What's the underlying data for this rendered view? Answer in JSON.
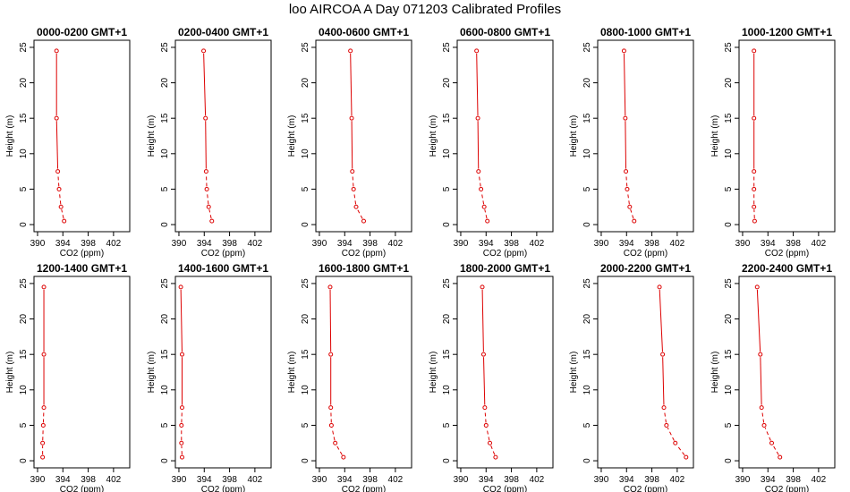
{
  "page": {
    "title": "loo AIRCOA A  Day 071203  Calibrated Profiles"
  },
  "colors": {
    "profile_line": "#dd0000",
    "axis": "#000000"
  },
  "chart_data": [
    {
      "type": "line",
      "title": "0000-0200 GMT+1",
      "xlabel": "CO2 (ppm)",
      "ylabel": "Height (m)",
      "xlim": [
        390,
        404
      ],
      "ylim": [
        0,
        25
      ],
      "xticks": [
        390,
        394,
        398,
        402
      ],
      "yticks": [
        0,
        5,
        10,
        15,
        20,
        25
      ],
      "grid": false,
      "x": [
        394.2,
        393.7,
        393.4,
        393.2,
        393.0,
        393.0
      ],
      "y": [
        0.5,
        2.5,
        5,
        7.5,
        15,
        24.5
      ]
    },
    {
      "type": "line",
      "title": "0200-0400 GMT+1",
      "xlabel": "CO2 (ppm)",
      "ylabel": "Height (m)",
      "xlim": [
        390,
        404
      ],
      "ylim": [
        0,
        25
      ],
      "xticks": [
        390,
        394,
        398,
        402
      ],
      "yticks": [
        0,
        5,
        10,
        15,
        20,
        25
      ],
      "grid": false,
      "x": [
        395.2,
        394.7,
        394.4,
        394.3,
        394.2,
        393.9
      ],
      "y": [
        0.5,
        2.5,
        5,
        7.5,
        15,
        24.5
      ]
    },
    {
      "type": "line",
      "title": "0400-0600 GMT+1",
      "xlabel": "CO2 (ppm)",
      "ylabel": "Height (m)",
      "xlim": [
        390,
        404
      ],
      "ylim": [
        0,
        25
      ],
      "xticks": [
        390,
        394,
        398,
        402
      ],
      "yticks": [
        0,
        5,
        10,
        15,
        20,
        25
      ],
      "grid": false,
      "x": [
        397.0,
        395.8,
        395.4,
        395.2,
        395.1,
        394.9
      ],
      "y": [
        0.5,
        2.5,
        5,
        7.5,
        15,
        24.5
      ]
    },
    {
      "type": "line",
      "title": "0600-0800 GMT+1",
      "xlabel": "CO2 (ppm)",
      "ylabel": "Height (m)",
      "xlim": [
        390,
        404
      ],
      "ylim": [
        0,
        25
      ],
      "xticks": [
        390,
        394,
        398,
        402
      ],
      "yticks": [
        0,
        5,
        10,
        15,
        20,
        25
      ],
      "grid": false,
      "x": [
        394.2,
        393.7,
        393.2,
        392.8,
        392.7,
        392.5
      ],
      "y": [
        0.5,
        2.5,
        5,
        7.5,
        15,
        24.5
      ]
    },
    {
      "type": "line",
      "title": "0800-1000 GMT+1",
      "xlabel": "CO2 (ppm)",
      "ylabel": "Height (m)",
      "xlim": [
        390,
        404
      ],
      "ylim": [
        0,
        25
      ],
      "xticks": [
        390,
        394,
        398,
        402
      ],
      "yticks": [
        0,
        5,
        10,
        15,
        20,
        25
      ],
      "grid": false,
      "x": [
        395.2,
        394.5,
        394.1,
        393.9,
        393.8,
        393.6
      ],
      "y": [
        0.5,
        2.5,
        5,
        7.5,
        15,
        24.5
      ]
    },
    {
      "type": "line",
      "title": "1000-1200 GMT+1",
      "xlabel": "CO2 (ppm)",
      "ylabel": "Height (m)",
      "xlim": [
        390,
        404
      ],
      "ylim": [
        0,
        25
      ],
      "xticks": [
        390,
        394,
        398,
        402
      ],
      "yticks": [
        0,
        5,
        10,
        15,
        20,
        25
      ],
      "grid": false,
      "x": [
        391.9,
        391.8,
        391.8,
        391.8,
        391.8,
        391.8
      ],
      "y": [
        0.5,
        2.5,
        5,
        7.5,
        15,
        24.5
      ]
    },
    {
      "type": "line",
      "title": "1200-1400 GMT+1",
      "xlabel": "CO2 (ppm)",
      "ylabel": "Height (m)",
      "xlim": [
        390,
        404
      ],
      "ylim": [
        0,
        25
      ],
      "xticks": [
        390,
        394,
        398,
        402
      ],
      "yticks": [
        0,
        5,
        10,
        15,
        20,
        25
      ],
      "grid": false,
      "x": [
        390.8,
        390.8,
        390.9,
        391.0,
        391.0,
        391.0
      ],
      "y": [
        0.5,
        2.5,
        5,
        7.5,
        15,
        24.5
      ]
    },
    {
      "type": "line",
      "title": "1400-1600 GMT+1",
      "xlabel": "CO2 (ppm)",
      "ylabel": "Height (m)",
      "xlim": [
        390,
        404
      ],
      "ylim": [
        0,
        25
      ],
      "xticks": [
        390,
        394,
        398,
        402
      ],
      "yticks": [
        0,
        5,
        10,
        15,
        20,
        25
      ],
      "grid": false,
      "x": [
        390.5,
        390.4,
        390.4,
        390.5,
        390.5,
        390.3
      ],
      "y": [
        0.5,
        2.5,
        5,
        7.5,
        15,
        24.5
      ]
    },
    {
      "type": "line",
      "title": "1600-1800 GMT+1",
      "xlabel": "CO2 (ppm)",
      "ylabel": "Height (m)",
      "xlim": [
        390,
        404
      ],
      "ylim": [
        0,
        25
      ],
      "xticks": [
        390,
        394,
        398,
        402
      ],
      "yticks": [
        0,
        5,
        10,
        15,
        20,
        25
      ],
      "grid": false,
      "x": [
        393.8,
        392.5,
        391.9,
        391.8,
        391.8,
        391.7
      ],
      "y": [
        0.5,
        2.5,
        5,
        7.5,
        15,
        24.5
      ]
    },
    {
      "type": "line",
      "title": "1800-2000 GMT+1",
      "xlabel": "CO2 (ppm)",
      "ylabel": "Height (m)",
      "xlim": [
        390,
        404
      ],
      "ylim": [
        0,
        25
      ],
      "xticks": [
        390,
        394,
        398,
        402
      ],
      "yticks": [
        0,
        5,
        10,
        15,
        20,
        25
      ],
      "grid": false,
      "x": [
        395.5,
        394.6,
        394.0,
        393.8,
        393.6,
        393.4
      ],
      "y": [
        0.5,
        2.5,
        5,
        7.5,
        15,
        24.5
      ]
    },
    {
      "type": "line",
      "title": "2000-2200 GMT+1",
      "xlabel": "CO2 (ppm)",
      "ylabel": "Height (m)",
      "xlim": [
        390,
        404
      ],
      "ylim": [
        0,
        25
      ],
      "xticks": [
        390,
        394,
        398,
        402
      ],
      "yticks": [
        0,
        5,
        10,
        15,
        20,
        25
      ],
      "grid": false,
      "x": [
        403.4,
        401.7,
        400.3,
        399.9,
        399.7,
        399.2
      ],
      "y": [
        0.5,
        2.5,
        5,
        7.5,
        15,
        24.5
      ]
    },
    {
      "type": "line",
      "title": "2200-2400 GMT+1",
      "xlabel": "CO2 (ppm)",
      "ylabel": "Height (m)",
      "xlim": [
        390,
        404
      ],
      "ylim": [
        0,
        25
      ],
      "xticks": [
        390,
        394,
        398,
        402
      ],
      "yticks": [
        0,
        5,
        10,
        15,
        20,
        25
      ],
      "grid": false,
      "x": [
        395.9,
        394.6,
        393.4,
        393.0,
        392.8,
        392.3
      ],
      "y": [
        0.5,
        2.5,
        5,
        7.5,
        15,
        24.5
      ]
    }
  ]
}
